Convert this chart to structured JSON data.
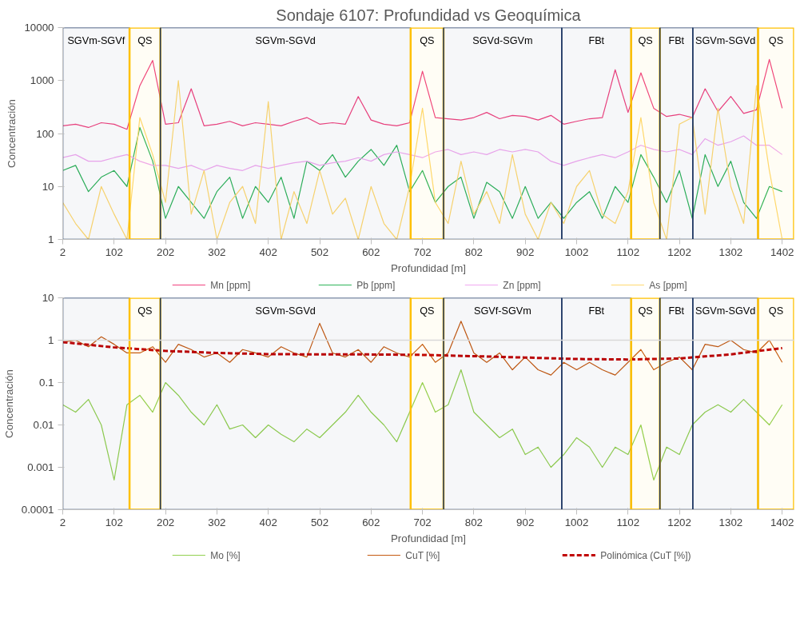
{
  "chart_data": [
    {
      "type": "line",
      "title": "Sondaje 6107: Profundidad vs Geoquímica",
      "xlabel": "Profundidad [m]",
      "ylabel": "Concentración",
      "log": "y",
      "grid": false,
      "legend": "bottom",
      "xlim": [
        2,
        1425
      ],
      "xticks": [
        2,
        102,
        202,
        302,
        402,
        502,
        602,
        702,
        802,
        902,
        1002,
        1102,
        1202,
        1302,
        1402
      ],
      "ylim": [
        1,
        10000
      ],
      "yticks": [
        1,
        10,
        100,
        1000,
        10000
      ],
      "x": [
        2,
        27,
        52,
        77,
        102,
        127,
        152,
        177,
        202,
        227,
        252,
        277,
        302,
        327,
        352,
        377,
        402,
        427,
        452,
        477,
        502,
        527,
        552,
        577,
        602,
        627,
        652,
        677,
        702,
        727,
        752,
        777,
        802,
        827,
        852,
        877,
        902,
        927,
        952,
        977,
        1002,
        1027,
        1052,
        1077,
        1102,
        1127,
        1152,
        1177,
        1202,
        1227,
        1252,
        1277,
        1302,
        1327,
        1352,
        1377,
        1402
      ],
      "series": [
        {
          "name": "Mn [ppm]",
          "color": "#f0427f",
          "values": [
            140,
            150,
            130,
            160,
            150,
            120,
            800,
            2400,
            150,
            160,
            700,
            140,
            150,
            170,
            140,
            160,
            150,
            140,
            170,
            200,
            150,
            160,
            150,
            500,
            180,
            150,
            140,
            160,
            1500,
            200,
            190,
            180,
            200,
            250,
            190,
            220,
            210,
            180,
            220,
            150,
            170,
            190,
            200,
            1600,
            250,
            1400,
            300,
            210,
            230,
            200,
            700,
            260,
            500,
            240,
            280,
            2500,
            300
          ]
        },
        {
          "name": "Pb [ppm]",
          "color": "#2eb35a",
          "values": [
            20,
            25,
            8,
            15,
            20,
            10,
            130,
            30,
            2.5,
            10,
            5,
            2.5,
            8,
            15,
            2.5,
            10,
            5,
            15,
            2.5,
            30,
            20,
            40,
            15,
            30,
            50,
            25,
            60,
            8,
            20,
            5,
            10,
            15,
            2.5,
            12,
            8,
            2.5,
            10,
            2.5,
            5,
            2.5,
            5,
            8,
            2.5,
            10,
            5,
            40,
            15,
            5,
            20,
            2.5,
            40,
            10,
            30,
            5,
            2.5,
            10,
            8
          ]
        },
        {
          "name": "Zn [ppm]",
          "color": "#f0a8f0",
          "values": [
            35,
            40,
            30,
            30,
            35,
            40,
            30,
            25,
            25,
            22,
            25,
            20,
            25,
            22,
            20,
            25,
            22,
            25,
            28,
            30,
            25,
            28,
            30,
            35,
            30,
            40,
            45,
            40,
            35,
            45,
            50,
            40,
            45,
            40,
            50,
            45,
            50,
            45,
            30,
            25,
            30,
            35,
            40,
            35,
            45,
            60,
            50,
            45,
            50,
            40,
            80,
            60,
            70,
            90,
            60,
            60,
            40
          ]
        },
        {
          "name": "As [ppm]",
          "color": "#ffd970",
          "values": [
            5,
            2,
            1,
            10,
            3,
            1,
            200,
            40,
            5,
            1000,
            3,
            20,
            1,
            5,
            10,
            2,
            400,
            1,
            8,
            2,
            20,
            3,
            6,
            1,
            10,
            2,
            1,
            10,
            300,
            5,
            2,
            30,
            3,
            8,
            2,
            40,
            3,
            1,
            5,
            2,
            10,
            20,
            3,
            2,
            8,
            200,
            5,
            1,
            150,
            200,
            3,
            300,
            10,
            2,
            800,
            20,
            1
          ]
        }
      ],
      "bands": [
        {
          "axis": "x",
          "from": 2,
          "to": 132,
          "label": "SGVm-SGVf",
          "color": "#1f3864"
        },
        {
          "axis": "x",
          "from": 132,
          "to": 192,
          "label": "QS",
          "color": "#ffc000"
        },
        {
          "axis": "x",
          "from": 192,
          "to": 679,
          "label": "SGVm-SGVd",
          "color": "#1f3864"
        },
        {
          "axis": "x",
          "from": 679,
          "to": 743,
          "label": "QS",
          "color": "#ffc000"
        },
        {
          "axis": "x",
          "from": 743,
          "to": 973,
          "label": "SGVd-SGVm",
          "color": "#1f3864"
        },
        {
          "axis": "x",
          "from": 973,
          "to": 1108,
          "label": "FBt",
          "color": "#1f3864"
        },
        {
          "axis": "x",
          "from": 1108,
          "to": 1164,
          "label": "QS",
          "color": "#ffc000"
        },
        {
          "axis": "x",
          "from": 1164,
          "to": 1228,
          "label": "FBt",
          "color": "#1f3864"
        },
        {
          "axis": "x",
          "from": 1228,
          "to": 1355,
          "label": "SGVm-SGVd",
          "color": "#1f3864"
        },
        {
          "axis": "x",
          "from": 1355,
          "to": 1425,
          "label": "QS",
          "color": "#ffc000"
        }
      ]
    },
    {
      "type": "line",
      "xlabel": "Profundidad [m]",
      "ylabel": "Concentración",
      "log": "y",
      "grid": false,
      "legend": "bottom",
      "xlim": [
        2,
        1425
      ],
      "xticks": [
        2,
        102,
        202,
        302,
        402,
        502,
        602,
        702,
        802,
        902,
        1002,
        1102,
        1202,
        1302,
        1402
      ],
      "ylim": [
        0.0001,
        10
      ],
      "yticks": [
        0.0001,
        0.001,
        0.01,
        0.1,
        1,
        10
      ],
      "x": [
        2,
        27,
        52,
        77,
        102,
        127,
        152,
        177,
        202,
        227,
        252,
        277,
        302,
        327,
        352,
        377,
        402,
        427,
        452,
        477,
        502,
        527,
        552,
        577,
        602,
        627,
        652,
        677,
        702,
        727,
        752,
        777,
        802,
        827,
        852,
        877,
        902,
        927,
        952,
        977,
        1002,
        1027,
        1052,
        1077,
        1102,
        1127,
        1152,
        1177,
        1202,
        1227,
        1252,
        1277,
        1302,
        1327,
        1352,
        1377,
        1402
      ],
      "series": [
        {
          "name": "Mo [%]",
          "color": "#92d050",
          "values": [
            0.03,
            0.02,
            0.04,
            0.01,
            0.0005,
            0.03,
            0.05,
            0.02,
            0.1,
            0.05,
            0.02,
            0.01,
            0.03,
            0.008,
            0.01,
            0.005,
            0.01,
            0.006,
            0.004,
            0.008,
            0.005,
            0.01,
            0.02,
            0.05,
            0.02,
            0.01,
            0.004,
            0.02,
            0.1,
            0.02,
            0.03,
            0.2,
            0.02,
            0.01,
            0.005,
            0.008,
            0.002,
            0.003,
            0.001,
            0.002,
            0.005,
            0.003,
            0.001,
            0.003,
            0.002,
            0.01,
            0.0005,
            0.003,
            0.002,
            0.01,
            0.02,
            0.03,
            0.02,
            0.04,
            0.02,
            0.01,
            0.03
          ]
        },
        {
          "name": "CuT [%]",
          "color": "#c55a11",
          "values": [
            0.9,
            1.0,
            0.7,
            1.2,
            0.8,
            0.5,
            0.5,
            0.7,
            0.3,
            0.8,
            0.6,
            0.4,
            0.5,
            0.3,
            0.6,
            0.5,
            0.4,
            0.7,
            0.5,
            0.4,
            2.5,
            0.5,
            0.4,
            0.6,
            0.3,
            0.7,
            0.5,
            0.4,
            0.8,
            0.3,
            0.5,
            2.8,
            0.5,
            0.3,
            0.5,
            0.2,
            0.4,
            0.2,
            0.15,
            0.3,
            0.2,
            0.3,
            0.2,
            0.15,
            0.3,
            0.6,
            0.2,
            0.3,
            0.4,
            0.2,
            0.8,
            0.7,
            1.0,
            0.6,
            0.5,
            1.0,
            0.3
          ]
        },
        {
          "name": "Polinómica (CuT [%])",
          "color": "#c00000",
          "line_style": "dashed",
          "x": [
            2,
            100,
            200,
            300,
            400,
            500,
            600,
            700,
            800,
            900,
            1000,
            1100,
            1200,
            1300,
            1402
          ],
          "values": [
            0.9,
            0.68,
            0.56,
            0.5,
            0.47,
            0.46,
            0.46,
            0.45,
            0.42,
            0.39,
            0.36,
            0.35,
            0.37,
            0.46,
            0.65
          ]
        }
      ],
      "ref_lines": [
        {
          "axis": "y",
          "value": 1,
          "color": "#d9d9d9"
        }
      ],
      "bands": [
        {
          "axis": "x",
          "from": 2,
          "to": 132,
          "color": "#1f3864"
        },
        {
          "axis": "x",
          "from": 132,
          "to": 192,
          "label": "QS",
          "color": "#ffc000"
        },
        {
          "axis": "x",
          "from": 192,
          "to": 679,
          "label": "SGVm-SGVd",
          "color": "#1f3864"
        },
        {
          "axis": "x",
          "from": 679,
          "to": 743,
          "label": "QS",
          "color": "#ffc000"
        },
        {
          "axis": "x",
          "from": 743,
          "to": 973,
          "label": "SGVf-SGVm",
          "color": "#1f3864"
        },
        {
          "axis": "x",
          "from": 973,
          "to": 1108,
          "label": "FBt",
          "color": "#1f3864"
        },
        {
          "axis": "x",
          "from": 1108,
          "to": 1164,
          "label": "QS",
          "color": "#ffc000"
        },
        {
          "axis": "x",
          "from": 1164,
          "to": 1228,
          "label": "FBt",
          "color": "#1f3864"
        },
        {
          "axis": "x",
          "from": 1228,
          "to": 1355,
          "label": "SGVm-SGVd",
          "color": "#1f3864"
        },
        {
          "axis": "x",
          "from": 1355,
          "to": 1425,
          "label": "QS",
          "color": "#ffc000"
        }
      ]
    }
  ]
}
